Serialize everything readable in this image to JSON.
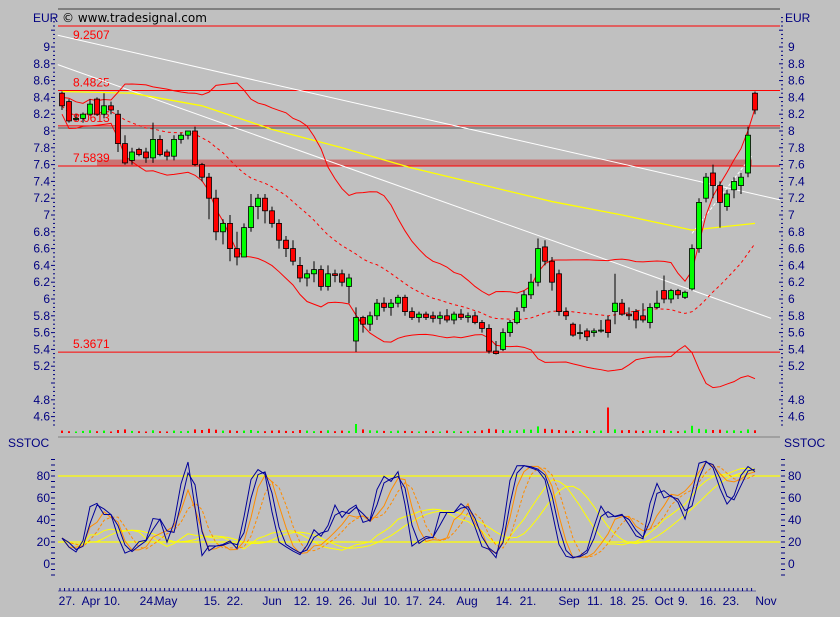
{
  "header": {
    "copyright": "© www.tradesignal.com",
    "currency_left": "EUR",
    "currency_right": "EUR"
  },
  "colors": {
    "background": "#c0c0c0",
    "up_candle": "#00ff00",
    "down_candle": "#ff0000",
    "axis_text": "#000080",
    "levels": "#ff0000",
    "moving_average": "#ffff00",
    "trend_lines": "#ffffff",
    "stoch_fast": "#000099",
    "stoch_mid": "#ff8c00",
    "stoch_slow": "#ffff00"
  },
  "chart_data": [
    {
      "type": "candlestick",
      "ylabel": "EUR",
      "ylim": [
        4.5,
        9.4
      ],
      "y_ticks": [
        "9",
        "8.8",
        "8.6",
        "8.4",
        "8.2",
        "8",
        "7.8",
        "7.6",
        "7.4",
        "7.2",
        "7",
        "6.8",
        "6.6",
        "6.4",
        "6.2",
        "6",
        "5.8",
        "5.6",
        "5.4",
        "5.2",
        "4.8",
        "4.6"
      ],
      "x_ticks": [
        "27.",
        "Apr",
        "10.",
        "24.",
        "May",
        "15.",
        "22.",
        "Jun",
        "12.",
        "19.",
        "26.",
        "Jul",
        "10.",
        "17.",
        "24.",
        "Aug",
        "14.",
        "21.",
        "Sep",
        "11.",
        "18.",
        "25.",
        "Oct",
        "9.",
        "16.",
        "23.",
        "Nov"
      ],
      "levels": [
        "9.2507",
        "8.4825",
        "8.0613",
        "7.5839",
        "5.3671"
      ],
      "resistance_zone": [
        7.58,
        7.66
      ],
      "ohlc": [
        [
          8.45,
          8.47,
          8.25,
          8.3
        ],
        [
          8.35,
          8.38,
          8.1,
          8.12
        ],
        [
          8.15,
          8.2,
          8.12,
          8.15
        ],
        [
          8.15,
          8.22,
          8.1,
          8.2
        ],
        [
          8.2,
          8.38,
          8.18,
          8.32
        ],
        [
          8.38,
          8.4,
          8.18,
          8.2
        ],
        [
          8.2,
          8.45,
          8.15,
          8.3
        ],
        [
          8.3,
          8.35,
          8.2,
          8.25
        ],
        [
          8.2,
          8.25,
          7.75,
          7.85
        ],
        [
          7.85,
          7.95,
          7.6,
          7.62
        ],
        [
          7.65,
          7.8,
          7.6,
          7.75
        ],
        [
          7.78,
          7.8,
          7.7,
          7.72
        ],
        [
          7.75,
          7.8,
          7.62,
          7.68
        ],
        [
          7.68,
          8.1,
          7.62,
          7.9
        ],
        [
          7.9,
          7.95,
          7.7,
          7.72
        ],
        [
          7.75,
          7.78,
          7.65,
          7.7
        ],
        [
          7.7,
          7.95,
          7.65,
          7.9
        ],
        [
          7.9,
          7.98,
          7.85,
          7.95
        ],
        [
          7.95,
          8.0,
          7.9,
          8.0
        ],
        [
          8.0,
          8.05,
          7.58,
          7.6
        ],
        [
          7.6,
          7.62,
          7.4,
          7.45
        ],
        [
          7.45,
          7.5,
          6.95,
          7.2
        ],
        [
          7.2,
          7.3,
          6.7,
          6.8
        ],
        [
          6.8,
          6.95,
          6.65,
          6.9
        ],
        [
          6.9,
          7.0,
          6.45,
          6.6
        ],
        [
          6.6,
          6.8,
          6.4,
          6.5
        ],
        [
          6.5,
          6.9,
          6.5,
          6.85
        ],
        [
          6.85,
          7.25,
          6.8,
          7.1
        ],
        [
          7.1,
          7.25,
          6.95,
          7.2
        ],
        [
          7.2,
          7.25,
          6.9,
          7.05
        ],
        [
          7.05,
          7.1,
          6.85,
          6.9
        ],
        [
          6.9,
          6.95,
          6.6,
          6.7
        ],
        [
          6.7,
          6.75,
          6.5,
          6.6
        ],
        [
          6.6,
          6.7,
          6.4,
          6.45
        ],
        [
          6.4,
          6.5,
          6.2,
          6.25
        ],
        [
          6.25,
          6.35,
          6.15,
          6.3
        ],
        [
          6.3,
          6.45,
          6.2,
          6.35
        ],
        [
          6.35,
          6.4,
          6.1,
          6.15
        ],
        [
          6.15,
          6.4,
          6.1,
          6.3
        ],
        [
          6.3,
          6.35,
          6.2,
          6.28
        ],
        [
          6.3,
          6.35,
          6.15,
          6.2
        ],
        [
          6.15,
          6.3,
          5.95,
          6.25
        ],
        [
          5.5,
          5.9,
          5.37,
          5.78
        ],
        [
          5.78,
          5.8,
          5.6,
          5.7
        ],
        [
          5.7,
          5.85,
          5.62,
          5.8
        ],
        [
          5.8,
          6.0,
          5.75,
          5.95
        ],
        [
          5.95,
          6.02,
          5.85,
          5.9
        ],
        [
          5.9,
          6.0,
          5.8,
          5.95
        ],
        [
          5.95,
          6.05,
          5.9,
          6.02
        ],
        [
          6.02,
          6.05,
          5.8,
          5.85
        ],
        [
          5.85,
          5.9,
          5.75,
          5.78
        ],
        [
          5.78,
          5.85,
          5.72,
          5.82
        ],
        [
          5.82,
          5.85,
          5.75,
          5.78
        ],
        [
          5.8,
          5.85,
          5.72,
          5.77
        ],
        [
          5.77,
          5.85,
          5.7,
          5.8
        ],
        [
          5.8,
          5.88,
          5.72,
          5.75
        ],
        [
          5.75,
          5.85,
          5.7,
          5.82
        ],
        [
          5.82,
          5.88,
          5.75,
          5.78
        ],
        [
          5.78,
          5.84,
          5.72,
          5.8
        ],
        [
          5.8,
          5.85,
          5.7,
          5.72
        ],
        [
          5.72,
          5.75,
          5.6,
          5.65
        ],
        [
          5.65,
          5.7,
          5.35,
          5.38
        ],
        [
          5.38,
          5.5,
          5.34,
          5.35
        ],
        [
          5.4,
          5.65,
          5.38,
          5.6
        ],
        [
          5.6,
          5.75,
          5.55,
          5.72
        ],
        [
          5.72,
          5.9,
          5.7,
          5.85
        ],
        [
          5.9,
          6.1,
          5.85,
          6.05
        ],
        [
          6.05,
          6.3,
          6.0,
          6.2
        ],
        [
          6.2,
          6.72,
          6.15,
          6.6
        ],
        [
          6.62,
          6.7,
          6.4,
          6.45
        ],
        [
          6.45,
          6.5,
          6.1,
          6.2
        ],
        [
          6.3,
          6.35,
          5.8,
          5.85
        ],
        [
          5.85,
          5.9,
          5.75,
          5.8
        ],
        [
          5.7,
          5.72,
          5.55,
          5.57
        ],
        [
          5.6,
          5.7,
          5.52,
          5.6
        ],
        [
          5.62,
          5.65,
          5.5,
          5.55
        ],
        [
          5.6,
          5.65,
          5.55,
          5.62
        ],
        [
          5.62,
          5.75,
          5.6,
          5.63
        ],
        [
          5.75,
          5.8,
          5.54,
          5.6
        ],
        [
          5.85,
          6.3,
          5.7,
          5.95
        ],
        [
          5.95,
          6.0,
          5.8,
          5.82
        ],
        [
          5.82,
          5.9,
          5.75,
          5.8
        ],
        [
          5.85,
          5.88,
          5.65,
          5.75
        ],
        [
          5.8,
          5.95,
          5.72,
          5.75
        ],
        [
          5.72,
          5.95,
          5.65,
          5.9
        ],
        [
          5.9,
          6.1,
          5.88,
          5.95
        ],
        [
          6.1,
          6.28,
          5.95,
          6.0
        ],
        [
          6.0,
          6.12,
          5.95,
          6.1
        ],
        [
          6.1,
          6.12,
          6.0,
          6.05
        ],
        [
          6.02,
          6.1,
          6.0,
          6.08
        ],
        [
          6.12,
          6.65,
          6.1,
          6.6
        ],
        [
          6.6,
          7.2,
          6.55,
          7.15
        ],
        [
          7.2,
          7.5,
          7.15,
          7.45
        ],
        [
          7.5,
          7.6,
          7.2,
          7.35
        ],
        [
          7.35,
          7.4,
          6.85,
          7.15
        ],
        [
          7.1,
          7.3,
          7.05,
          7.25
        ],
        [
          7.3,
          7.45,
          7.2,
          7.4
        ],
        [
          7.35,
          7.5,
          7.25,
          7.45
        ],
        [
          7.5,
          8.05,
          7.45,
          7.95
        ],
        [
          8.45,
          8.47,
          8.2,
          8.25
        ]
      ],
      "volume": [
        8,
        6,
        5,
        7,
        9,
        6,
        8,
        5,
        10,
        12,
        7,
        6,
        5,
        9,
        6,
        5,
        8,
        6,
        7,
        12,
        10,
        14,
        11,
        8,
        9,
        7,
        8,
        10,
        7,
        6,
        8,
        9,
        7,
        6,
        10,
        8,
        6,
        7,
        9,
        6,
        8,
        7,
        30,
        12,
        9,
        8,
        7,
        6,
        8,
        7,
        6,
        5,
        7,
        6,
        5,
        8,
        6,
        5,
        7,
        6,
        9,
        14,
        12,
        10,
        8,
        9,
        12,
        11,
        22,
        14,
        12,
        10,
        8,
        7,
        6,
        9,
        7,
        8,
        85,
        12,
        9,
        10,
        8,
        7,
        9,
        8,
        10,
        7,
        6,
        8,
        24,
        14,
        12,
        10,
        11,
        8,
        9,
        7,
        12,
        9
      ],
      "bollinger": {
        "period": 20,
        "deviations": 2
      },
      "moving_average": [
        [
          0,
          8.47
        ],
        [
          10,
          8.45
        ],
        [
          20,
          8.3
        ],
        [
          30,
          8.02
        ],
        [
          40,
          7.8
        ],
        [
          50,
          7.56
        ],
        [
          60,
          7.36
        ],
        [
          70,
          7.16
        ],
        [
          80,
          7.0
        ],
        [
          90,
          6.82
        ],
        [
          99,
          6.9
        ]
      ],
      "trend_lines": [
        [
          [
            -0.6,
            9.14
          ],
          [
            102.6,
            7.18
          ]
        ],
        [
          [
            -0.6,
            8.79
          ],
          [
            101.3,
            5.77
          ]
        ],
        [
          [
            90,
            6.78
          ],
          [
            98.5,
            7.7
          ]
        ]
      ]
    },
    {
      "type": "line",
      "title": "SSTOC",
      "ylim": [
        -10,
        95
      ],
      "y_ticks": [
        "80",
        "60",
        "40",
        "20",
        "0"
      ],
      "reference_lines": [
        80,
        20
      ]
    }
  ]
}
